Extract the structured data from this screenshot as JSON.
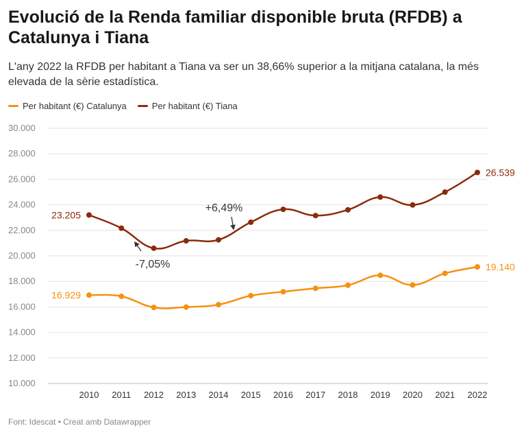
{
  "title": "Evolució de la Renda familiar disponible bruta (RFDB) a Catalunya i Tiana",
  "subtitle": "L'any 2022 la RFDB per habitant a Tiana va ser un 38,66% superior a la mitjana catalana, la més elevada de la sèrie estadística.",
  "footer": "Font: Idescat • Creat amb Datawrapper",
  "colors": {
    "catalunya": "#f4920e",
    "tiana": "#8b2a0b",
    "grid": "#e2e2e2",
    "axis_text": "#888888"
  },
  "chart_data": {
    "type": "line",
    "x": [
      "2010",
      "2011",
      "2012",
      "2013",
      "2014",
      "2015",
      "2016",
      "2017",
      "2018",
      "2019",
      "2020",
      "2021",
      "2022"
    ],
    "series": [
      {
        "name": "Per habitant (€) Catalunya",
        "color": "#f4920e",
        "values": [
          16929,
          16830,
          15960,
          15990,
          16180,
          16880,
          17190,
          17460,
          17700,
          18480,
          17720,
          18630,
          19140
        ]
      },
      {
        "name": "Per habitant (€) Tiana",
        "color": "#8b2a0b",
        "values": [
          23205,
          22170,
          20600,
          21180,
          21260,
          22640,
          23650,
          23160,
          23610,
          24610,
          23990,
          25000,
          26539
        ]
      }
    ],
    "ylim": [
      10000,
      30000
    ],
    "yticks": [
      10000,
      12000,
      14000,
      16000,
      18000,
      20000,
      22000,
      24000,
      26000,
      28000,
      30000
    ],
    "ytick_labels": [
      "10.000",
      "12.000",
      "14.000",
      "16.000",
      "18.000",
      "20.000",
      "22.000",
      "24.000",
      "26.000",
      "28.000",
      "30.000"
    ],
    "end_labels": {
      "catalunya_start": "16.929",
      "catalunya_end": "19.140",
      "tiana_start": "23.205",
      "tiana_end": "26.539"
    },
    "annotations": [
      {
        "text": "-7,05%",
        "year": "2012"
      },
      {
        "text": "+6,49%",
        "year": "2014"
      }
    ]
  }
}
